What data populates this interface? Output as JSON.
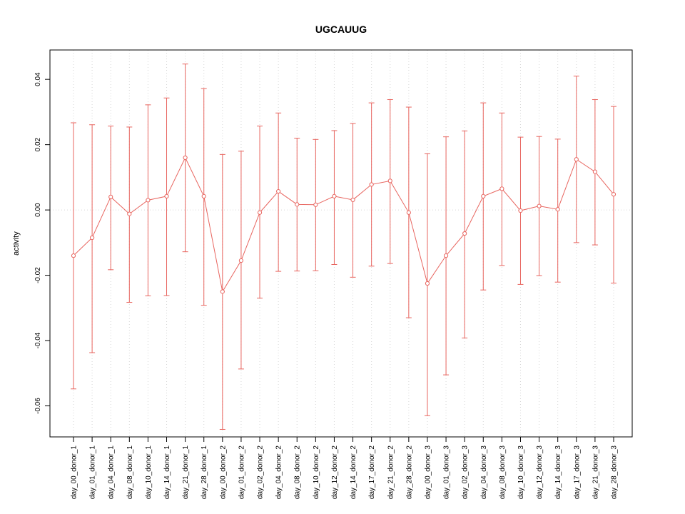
{
  "chart_data": {
    "type": "line",
    "title": "UGCAUUG",
    "xlabel": "",
    "ylabel": "activity",
    "color": "#e8655f",
    "grid": true,
    "legend": false,
    "ylim": [
      -0.0695,
      0.049
    ],
    "yticks": [
      {
        "value": 0.04,
        "label": "0.04"
      },
      {
        "value": 0.02,
        "label": "0.02"
      },
      {
        "value": 0.0,
        "label": "0.00"
      },
      {
        "value": -0.02,
        "label": "-0.02"
      },
      {
        "value": -0.04,
        "label": "-0.04"
      },
      {
        "value": -0.06,
        "label": "-0.06"
      }
    ],
    "categories": [
      "day_00_donor_1",
      "day_01_donor_1",
      "day_04_donor_1",
      "day_08_donor_1",
      "day_10_donor_1",
      "day_14_donor_1",
      "day_21_donor_1",
      "day_28_donor_1",
      "day_00_donor_2",
      "day_01_donor_2",
      "day_02_donor_2",
      "day_04_donor_2",
      "day_08_donor_2",
      "day_10_donor_2",
      "day_12_donor_2",
      "day_14_donor_2",
      "day_17_donor_2",
      "day_21_donor_2",
      "day_28_donor_2",
      "day_00_donor_3",
      "day_01_donor_3",
      "day_02_donor_3",
      "day_04_donor_3",
      "day_08_donor_3",
      "day_10_donor_3",
      "day_12_donor_3",
      "day_14_donor_3",
      "day_17_donor_3",
      "day_21_donor_3",
      "day_28_donor_3"
    ],
    "values": [
      -0.014,
      -0.0085,
      0.004,
      -0.0012,
      0.003,
      0.0042,
      0.016,
      0.0042,
      -0.025,
      -0.0155,
      -0.0008,
      0.0057,
      0.0017,
      0.0016,
      0.0042,
      0.0031,
      0.0078,
      0.0089,
      -0.0008,
      -0.0225,
      -0.014,
      -0.0072,
      0.0042,
      0.0065,
      -0.0002,
      0.0012,
      0.0002,
      0.0155,
      0.0117,
      0.0048
    ],
    "upper": [
      0.0267,
      0.0261,
      0.0257,
      0.0254,
      0.0322,
      0.0343,
      0.0447,
      0.0372,
      0.017,
      0.018,
      0.0257,
      0.0297,
      0.022,
      0.0216,
      0.0243,
      0.0265,
      0.0328,
      0.0338,
      0.0315,
      0.0172,
      0.0224,
      0.0242,
      0.0328,
      0.0297,
      0.0223,
      0.0225,
      0.0217,
      0.041,
      0.0338,
      0.0317
    ],
    "lower": [
      -0.0548,
      -0.0437,
      -0.0183,
      -0.0283,
      -0.0263,
      -0.0262,
      -0.0128,
      -0.0292,
      -0.0672,
      -0.0487,
      -0.027,
      -0.0188,
      -0.0187,
      -0.0186,
      -0.0167,
      -0.0206,
      -0.0172,
      -0.0164,
      -0.033,
      -0.063,
      -0.0505,
      -0.0392,
      -0.0245,
      -0.017,
      -0.0228,
      -0.0201,
      -0.0221,
      -0.01,
      -0.0107,
      -0.0224
    ]
  }
}
